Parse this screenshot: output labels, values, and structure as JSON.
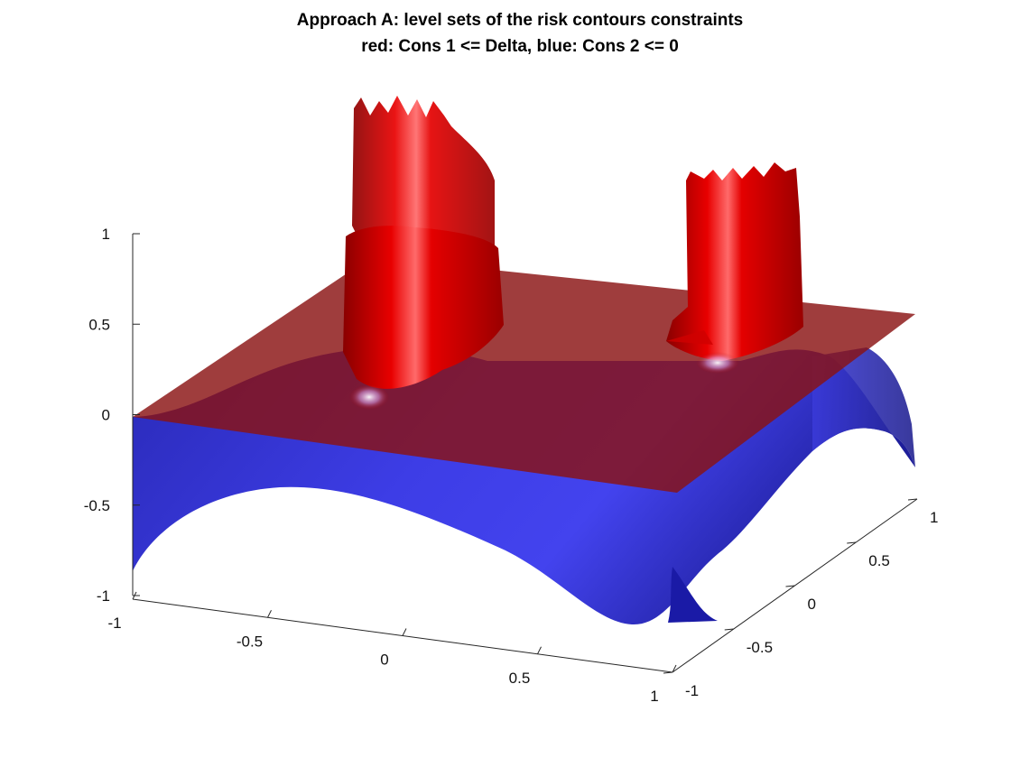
{
  "chart_data": {
    "type": "surface3d",
    "title": [
      "Approach A: level sets of the risk contours constraints",
      "red: Cons 1 <= Delta, blue: Cons 2 <= 0"
    ],
    "xlabel": "",
    "ylabel": "",
    "zlabel": "",
    "xlim": [
      -1,
      1
    ],
    "ylim": [
      -1,
      1
    ],
    "zlim": [
      -1,
      1
    ],
    "x_ticks": [
      "-1",
      "-0.5",
      "0",
      "0.5",
      "1"
    ],
    "y_ticks": [
      "-1",
      "-0.5",
      "0",
      "0.5",
      "1"
    ],
    "z_ticks": [
      "-1",
      "-0.5",
      "0",
      "0.5",
      "1"
    ],
    "grid": false,
    "series": [
      {
        "name": "Cons 1",
        "color": "#b50000",
        "level": 0,
        "description": "red translucent plane at z = 0 with two tall cylindrical spikes"
      },
      {
        "name": "Cons 2",
        "color": "#3a3ad8",
        "description": "blue wavy surface ranging from about -0.85 to 0.3"
      }
    ],
    "colors": {
      "red_plane": "#8a1e1e",
      "red_spike": "#e00000",
      "blue_surface": "#3535d0"
    }
  }
}
